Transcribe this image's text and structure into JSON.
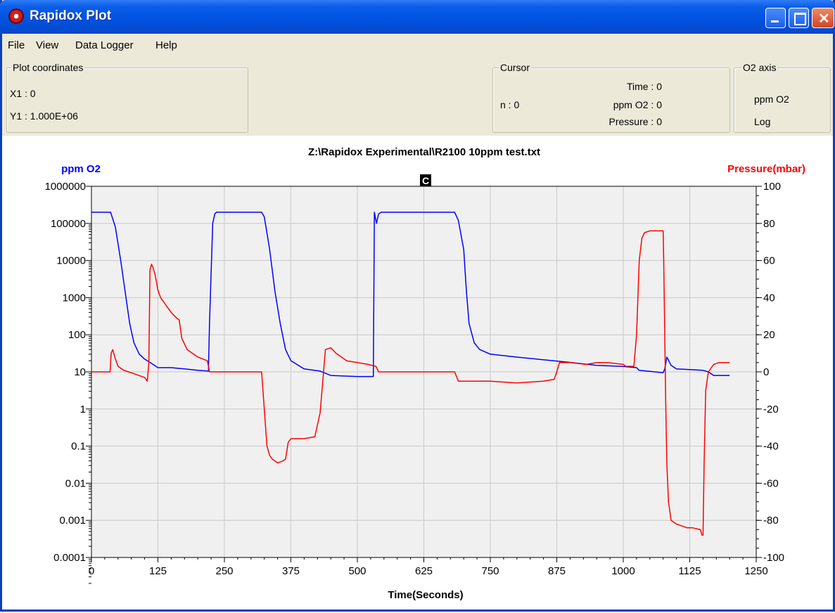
{
  "window": {
    "title": "Rapidox Plot"
  },
  "menu": {
    "file": "File",
    "view": "View",
    "data_logger": "Data Logger",
    "help": "Help"
  },
  "plot_coordinates": {
    "legend": "Plot coordinates",
    "x1": "X1 :  0",
    "y1": "Y1 :  1.000E+06"
  },
  "cursor": {
    "legend": "Cursor",
    "n": "n : 0",
    "time": "Time : 0",
    "ppm": "ppm O2 : 0",
    "pressure": "Pressure : 0"
  },
  "o2_axis": {
    "legend": "O2 axis",
    "unit": "ppm O2",
    "scale": "Log"
  },
  "colors": {
    "o2": "#0000ff",
    "pressure": "#ff0000",
    "plot_bg": "#f0f0f0",
    "grid": "#c8c8c8"
  },
  "chart_data": {
    "type": "line",
    "title": "Z:\\Rapidox Experimental\\R2100 10ppm test.txt",
    "xlabel": "Time(Seconds)",
    "ylabel_left": "ppm O2",
    "ylabel_right": "Pressure(mbar)",
    "cursor_marker": "C",
    "xlim": [
      0,
      1250
    ],
    "x_ticks": [
      0,
      125,
      250,
      375,
      500,
      625,
      750,
      875,
      1000,
      1125,
      1250
    ],
    "ylim_left": [
      0.0001,
      1000000
    ],
    "y_left_scale": "log",
    "y_left_ticks": [
      "1000000",
      "100000",
      "10000",
      "1000",
      "100",
      "10",
      "1",
      "0.1",
      "0.01",
      "0.001",
      "0.0001"
    ],
    "ylim_right": [
      -100,
      100
    ],
    "y_right_ticks": [
      100,
      80,
      60,
      40,
      20,
      0,
      -20,
      -40,
      -60,
      -80,
      -100
    ],
    "grid": true,
    "series": [
      {
        "name": "ppm O2",
        "axis": "left",
        "x": [
          0,
          36,
          45,
          55,
          65,
          72,
          80,
          90,
          100,
          110,
          125,
          150,
          175,
          200,
          220,
          222,
          228,
          232,
          235,
          240,
          250,
          260,
          300,
          320,
          325,
          335,
          345,
          355,
          365,
          375,
          400,
          430,
          450,
          500,
          530,
          532,
          536,
          540,
          545,
          560,
          600,
          650,
          683,
          690,
          700,
          705,
          710,
          720,
          730,
          750,
          800,
          900,
          950,
          1000,
          1025,
          1030,
          1060,
          1075,
          1078,
          1082,
          1090,
          1100,
          1150,
          1160,
          1170,
          1200
        ],
        "y": [
          200000,
          200000,
          80000,
          10000,
          1000,
          200,
          60,
          30,
          22,
          18,
          13,
          13,
          12,
          11,
          10.5,
          200,
          100000,
          180000,
          200000,
          200000,
          200000,
          200000,
          200000,
          200000,
          150000,
          20000,
          1500,
          200,
          40,
          20,
          12,
          10.5,
          8,
          7.5,
          7.5,
          200000,
          100000,
          180000,
          200000,
          200000,
          200000,
          200000,
          200000,
          120000,
          20000,
          1500,
          200,
          60,
          40,
          30,
          25,
          18,
          15,
          14,
          13,
          11,
          10,
          9.5,
          12,
          25,
          15,
          12,
          11,
          10,
          8,
          8
        ]
      },
      {
        "name": "Pressure(mbar)",
        "axis": "right",
        "x": [
          0,
          35,
          37,
          40,
          45,
          50,
          55,
          60,
          70,
          80,
          90,
          100,
          105,
          108,
          110,
          113,
          116,
          120,
          125,
          130,
          140,
          150,
          160,
          165,
          170,
          180,
          190,
          200,
          218,
          222,
          300,
          320,
          325,
          330,
          335,
          340,
          345,
          350,
          360,
          365,
          370,
          375,
          390,
          400,
          420,
          430,
          440,
          450,
          460,
          480,
          500,
          520,
          535,
          540,
          600,
          683,
          690,
          700,
          710,
          750,
          800,
          850,
          870,
          875,
          880,
          900,
          930,
          950,
          970,
          1000,
          1005,
          1020,
          1025,
          1030,
          1035,
          1040,
          1050,
          1060,
          1075,
          1076,
          1078,
          1080,
          1082,
          1085,
          1090,
          1100,
          1110,
          1120,
          1130,
          1145,
          1148,
          1150,
          1152,
          1155,
          1160,
          1170,
          1180,
          1200
        ],
        "y": [
          0,
          0,
          10,
          12,
          7,
          3,
          2,
          1,
          0,
          -1,
          -2,
          -3,
          -5,
          5,
          55,
          58,
          56,
          52,
          44,
          40,
          36,
          32,
          29,
          28,
          18,
          12,
          10,
          8,
          6,
          0,
          0,
          0,
          -20,
          -40,
          -45,
          -47,
          -48,
          -49,
          -48,
          -47,
          -38,
          -36,
          -36,
          -36,
          -35,
          -22,
          12,
          13,
          10,
          6,
          5,
          4,
          3,
          0,
          0,
          0,
          -5,
          -5,
          -5,
          -5,
          -6,
          -5,
          -4,
          0,
          5,
          5,
          4,
          5,
          5,
          4,
          3,
          3,
          20,
          60,
          72,
          75,
          76,
          76,
          76,
          60,
          20,
          -20,
          -50,
          -70,
          -80,
          -82,
          -83,
          -84,
          -84,
          -85,
          -88,
          -88,
          -50,
          -10,
          0,
          4,
          5,
          5
        ]
      }
    ]
  }
}
